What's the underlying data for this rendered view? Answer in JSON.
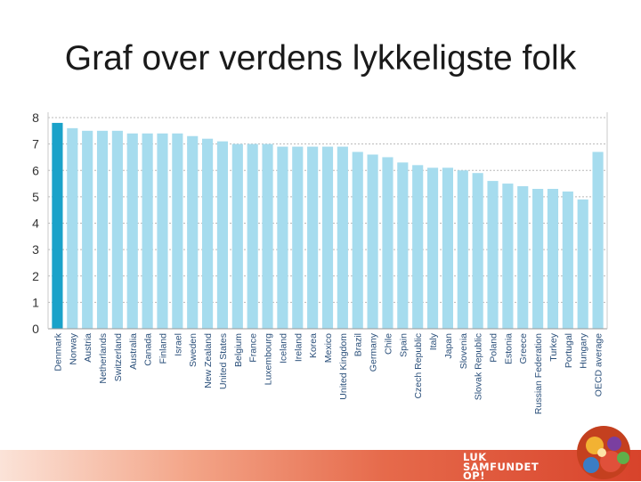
{
  "slide": {
    "title": "Graf over verdens lykkeligste folk"
  },
  "logo": {
    "line1": "LUK",
    "line2": "SAMFUNDET",
    "line3": "OP!"
  },
  "chart_data": {
    "type": "bar",
    "title": "",
    "xlabel": "",
    "ylabel": "",
    "ylim": [
      0,
      8
    ],
    "yticks": [
      "0",
      "1",
      "2",
      "3",
      "4",
      "5",
      "6",
      "7",
      "8"
    ],
    "grid": "horizontal dotted",
    "highlight_color": "#1aa2c9",
    "bar_color": "#a6dcee",
    "categories": [
      "Denmark",
      "Norway",
      "Austria",
      "Netherlands",
      "Switzerland",
      "Australia",
      "Canada",
      "Finland",
      "Israel",
      "Sweden",
      "New Zealand",
      "United States",
      "Belgium",
      "France",
      "Luxembourg",
      "Iceland",
      "Ireland",
      "Korea",
      "Mexico",
      "United Kingdom",
      "Brazil",
      "Germany",
      "Chile",
      "Spain",
      "Czech Republic",
      "Italy",
      "Japan",
      "Slovenia",
      "Slovak Republic",
      "Poland",
      "Estonia",
      "Greece",
      "Russian Federation",
      "Turkey",
      "Portugal",
      "Hungary",
      "OECD average"
    ],
    "values": [
      7.8,
      7.6,
      7.5,
      7.5,
      7.5,
      7.4,
      7.4,
      7.4,
      7.4,
      7.3,
      7.2,
      7.1,
      7.0,
      7.0,
      7.0,
      6.9,
      6.9,
      6.9,
      6.9,
      6.9,
      6.7,
      6.6,
      6.5,
      6.3,
      6.2,
      6.1,
      6.1,
      6.0,
      5.9,
      5.6,
      5.5,
      5.4,
      5.3,
      5.3,
      5.2,
      4.9,
      6.7
    ],
    "highlighted": [
      "Denmark"
    ]
  }
}
